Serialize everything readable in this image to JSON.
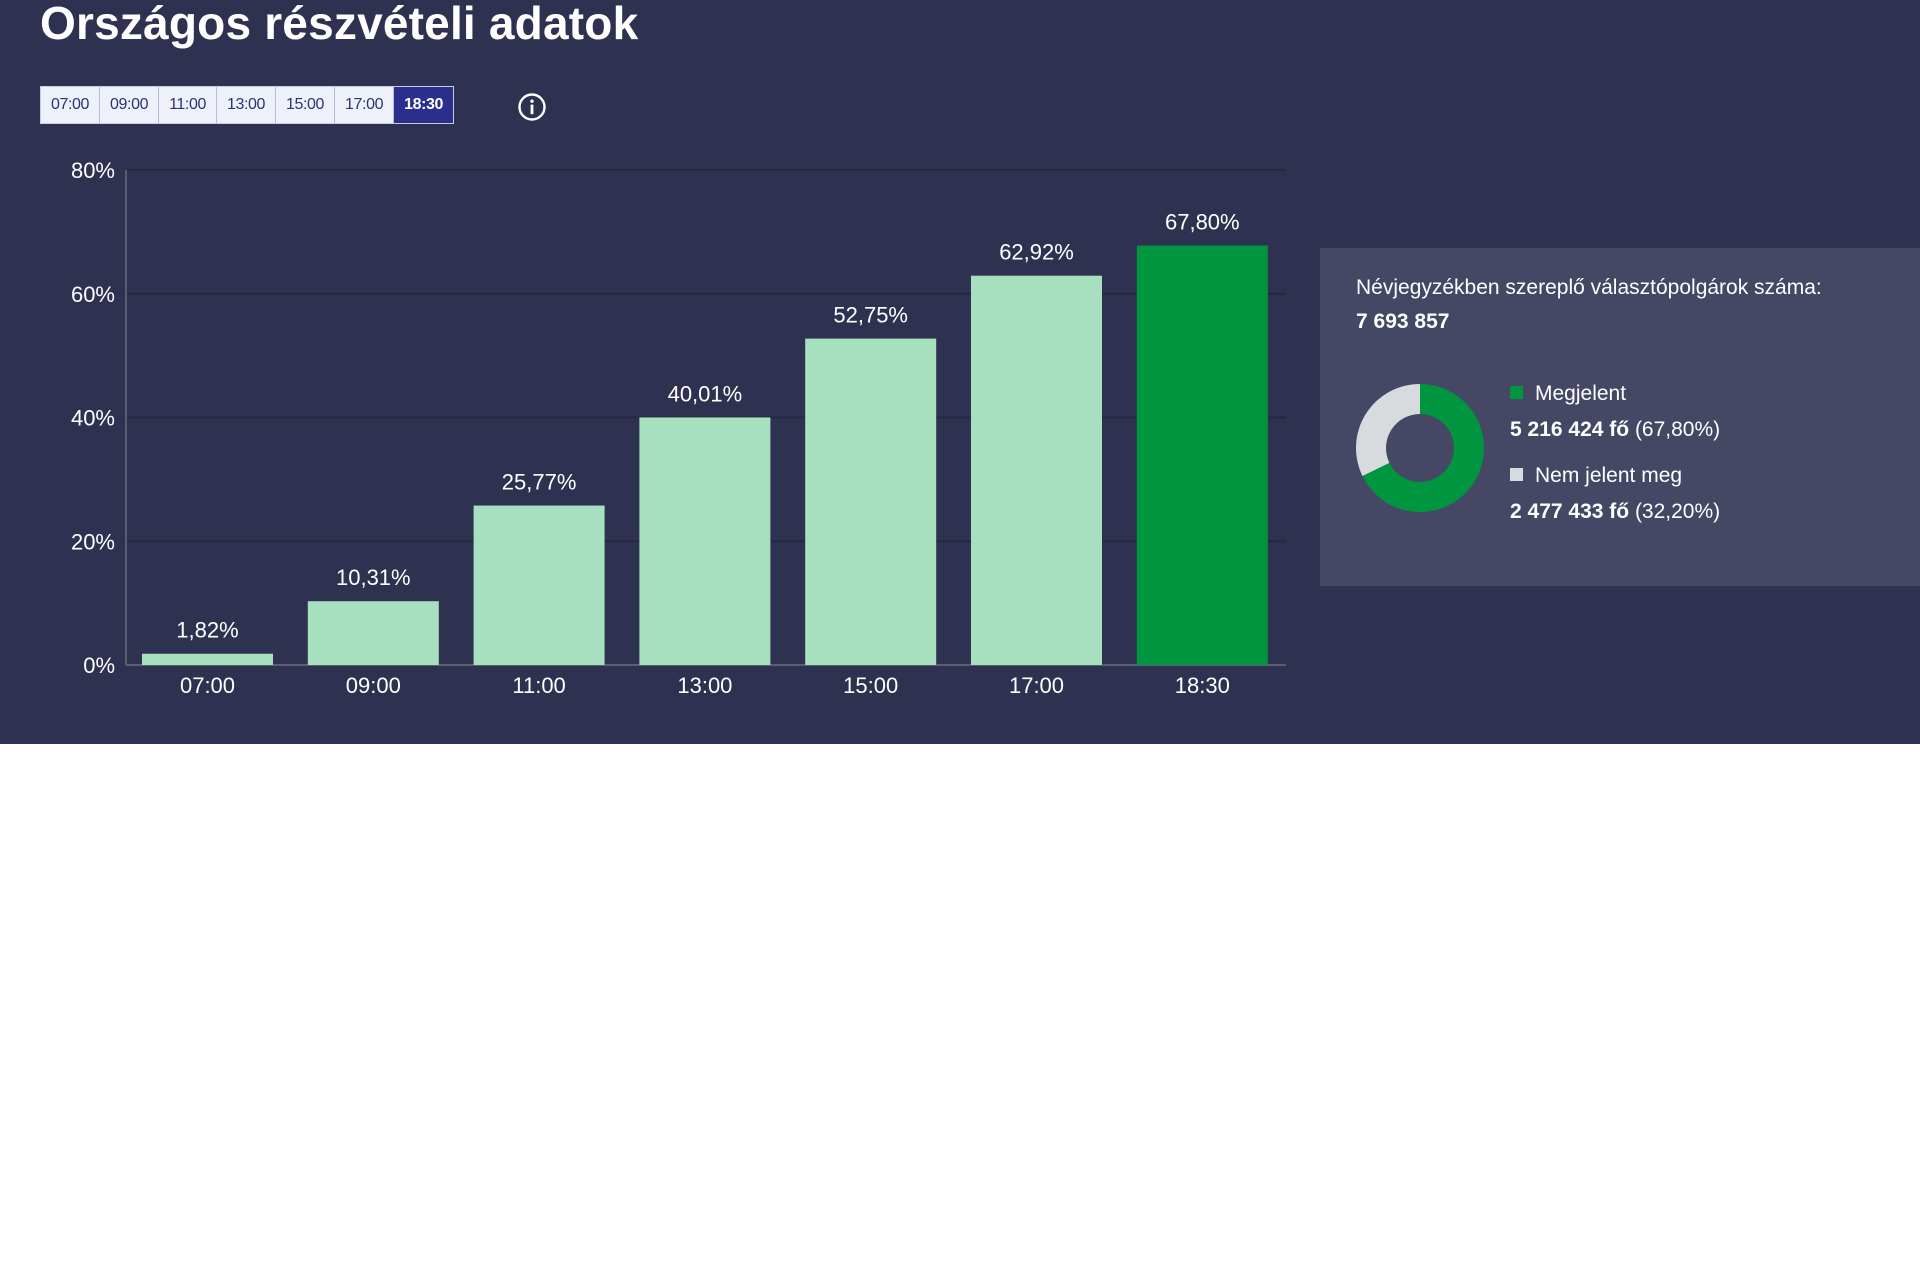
{
  "header": {
    "title": "Országos részvételi adatok"
  },
  "time_tabs": {
    "items": [
      "07:00",
      "09:00",
      "11:00",
      "13:00",
      "15:00",
      "17:00",
      "18:30"
    ],
    "selected": "18:30"
  },
  "info_icon": "info-circle-icon",
  "colors": {
    "background": "#2f3150",
    "bar": "#a6e0bf",
    "bar_selected": "#00963f",
    "card": "#454865",
    "not_voted": "#d7dbdd",
    "tab_active": "#2a2f8e"
  },
  "chart_data": {
    "type": "bar",
    "categories": [
      "07:00",
      "09:00",
      "11:00",
      "13:00",
      "15:00",
      "17:00",
      "18:30"
    ],
    "values": [
      1.82,
      10.31,
      25.77,
      40.01,
      52.75,
      62.92,
      67.8
    ],
    "data_labels": [
      "1,82%",
      "10,31%",
      "25,77%",
      "40,01%",
      "52,75%",
      "62,92%",
      "67,80%"
    ],
    "highlighted_category": "18:30",
    "ylim": [
      0,
      80
    ],
    "yticks": [
      0,
      20,
      40,
      60,
      80
    ],
    "ytick_labels": [
      "0%",
      "20%",
      "40%",
      "60%",
      "80%"
    ],
    "grid": true
  },
  "summary": {
    "voters_label": "Névjegyzékben szereplő választópolgárok száma:",
    "voters_count": "7 693 857",
    "donut": {
      "type": "pie",
      "values": [
        67.8,
        32.2
      ]
    },
    "legend": [
      {
        "label": "Megjelent",
        "count": "5 216 424 fő",
        "percent": "(67,80%)",
        "color": "#00963f"
      },
      {
        "label": "Nem jelent meg",
        "count": "2 477 433 fő",
        "percent": "(32,20%)",
        "color": "#d7dbdd"
      }
    ]
  }
}
